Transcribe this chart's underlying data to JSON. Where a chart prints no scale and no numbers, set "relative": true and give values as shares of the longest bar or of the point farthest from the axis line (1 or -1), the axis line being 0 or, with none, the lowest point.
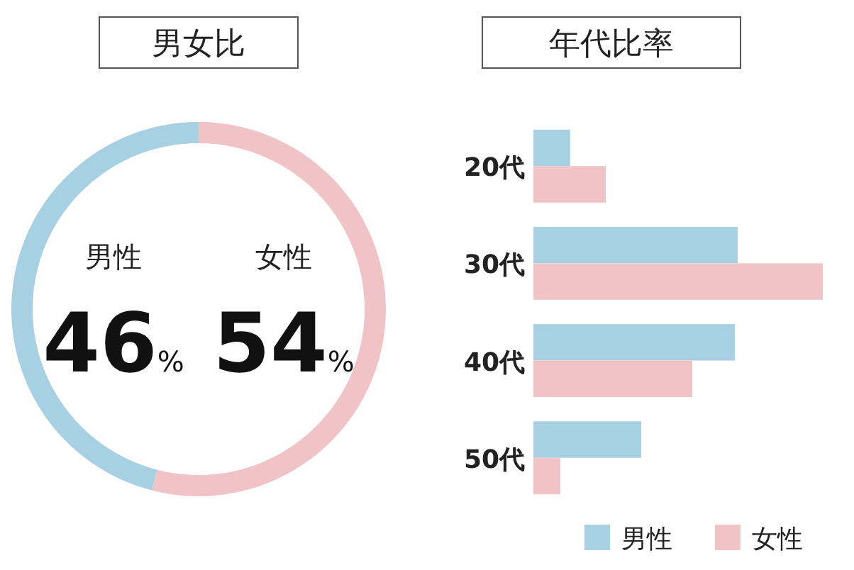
{
  "chart_data": [
    {
      "type": "donut",
      "title": "男女比",
      "categories": [
        "男性",
        "女性"
      ],
      "values": [
        46,
        54
      ],
      "value_labels": [
        "46%",
        "54%"
      ],
      "colors": [
        "#a8d0e3",
        "#f0c4c6"
      ]
    },
    {
      "type": "bar",
      "orientation": "horizontal",
      "relative": true,
      "title": "年代比率",
      "categories": [
        "20代",
        "30代",
        "40代",
        "50代"
      ],
      "legend": "bottom right",
      "series": [
        {
          "name": "男性",
          "color": "#a8d0e3",
          "values": [
            0.127,
            0.706,
            0.696,
            0.373
          ]
        },
        {
          "name": "女性",
          "color": "#f0c4c6",
          "values": [
            0.25,
            1,
            0.549,
            0.093
          ]
        }
      ]
    }
  ]
}
